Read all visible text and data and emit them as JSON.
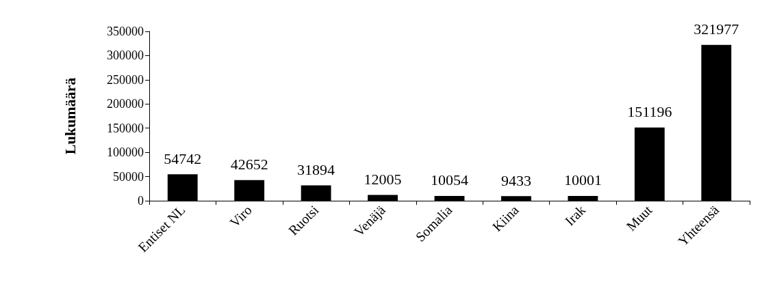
{
  "chart_data": {
    "type": "bar",
    "ylabel": "Lukumäärä",
    "categories": [
      "Entiset NL",
      "Viro",
      "Ruotsi",
      "Venäjä",
      "Somalia",
      "Kiina",
      "Irak",
      "Muut",
      "Yhteensä"
    ],
    "values": [
      54742,
      42652,
      31894,
      12005,
      10054,
      9433,
      10001,
      151196,
      321977
    ],
    "color": "#000000",
    "ylim": [
      0,
      350000
    ],
    "yticks": [
      0,
      50000,
      100000,
      150000,
      200000,
      250000,
      300000,
      350000
    ],
    "grid": false,
    "data_labels": true
  }
}
